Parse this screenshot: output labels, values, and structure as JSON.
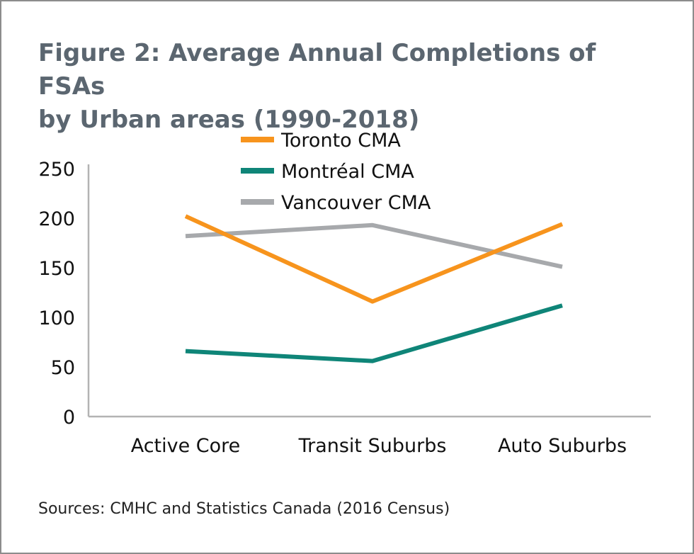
{
  "figure": {
    "title_line1": "Figure 2: Average Annual Completions of FSAs",
    "title_line2": "by Urban areas (1990-2018)",
    "source": "Sources: CMHC and Statistics Canada (2016 Census)"
  },
  "chart_data": {
    "type": "line",
    "title": "Figure 2: Average Annual Completions of FSAs by Urban areas (1990-2018)",
    "categories": [
      "Active Core",
      "Transit Suburbs",
      "Auto Suburbs"
    ],
    "series": [
      {
        "name": "Toronto CMA",
        "color": "#f7941d",
        "values": [
          202,
          116,
          194
        ]
      },
      {
        "name": "Montréal CMA",
        "color": "#0f8578",
        "values": [
          66,
          56,
          112
        ]
      },
      {
        "name": "Vancouver CMA",
        "color": "#a7a9ac",
        "values": [
          182,
          193,
          151
        ]
      }
    ],
    "y_ticks": [
      "0",
      "50",
      "100",
      "150",
      "200",
      "250"
    ],
    "ylim": [
      0,
      250
    ],
    "xlabel": "",
    "ylabel": "",
    "grid": false,
    "legend_position": "top-center"
  }
}
